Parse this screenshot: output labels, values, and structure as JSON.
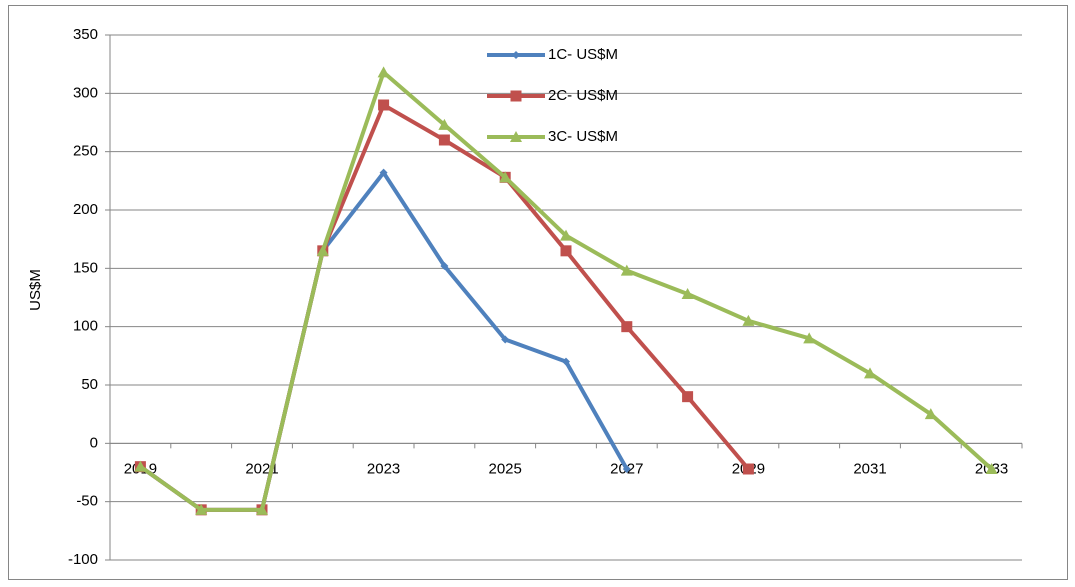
{
  "chart_data": {
    "type": "line",
    "y_label": "US$M",
    "categories": [
      "2019",
      null,
      "2021",
      null,
      "2023",
      null,
      "2025",
      null,
      "2027",
      null,
      "2029",
      null,
      "2031",
      null,
      "2033"
    ],
    "series": [
      {
        "name": "1C- US$M",
        "color": "#4f81bd",
        "marker": "diamond",
        "values": [
          -20,
          -57,
          -57,
          165,
          232,
          152,
          89,
          70,
          -22,
          null,
          null,
          null,
          null,
          null,
          null
        ]
      },
      {
        "name": "2C- US$M",
        "color": "#c0504d",
        "marker": "square",
        "values": [
          -20,
          -57,
          -57,
          165,
          290,
          260,
          228,
          165,
          100,
          40,
          -22,
          null,
          null,
          null,
          null
        ]
      },
      {
        "name": "3C- US$M",
        "color": "#9bbb59",
        "marker": "triangle",
        "values": [
          -20,
          -57,
          -57,
          165,
          318,
          273,
          228,
          178,
          148,
          128,
          105,
          90,
          60,
          25,
          -22
        ]
      }
    ],
    "ylim": [
      -100,
      350
    ],
    "yticks": [
      -100,
      -50,
      0,
      50,
      100,
      150,
      200,
      250,
      300,
      350
    ],
    "grid": true
  }
}
